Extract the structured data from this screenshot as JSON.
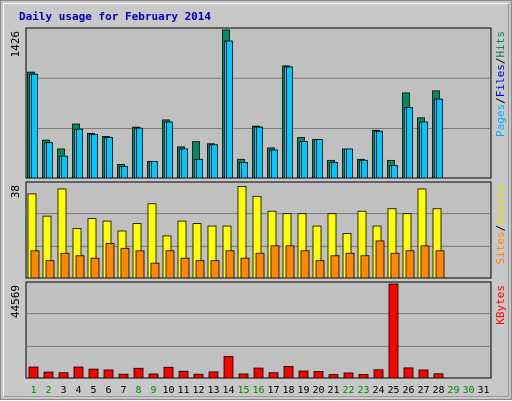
{
  "title": "Daily usage for February 2014",
  "colors": {
    "panel_bg": "#c0c0c0",
    "hits": "#008c60",
    "files": "#00ccff",
    "pages": "#00c8ff",
    "visits": "#ffff00",
    "sites": "#ff8800",
    "kbytes": "#ff0000",
    "weekday_label": "#000000",
    "weekend_label": "#008800",
    "title": "#0000bb"
  },
  "chart_data": [
    {
      "type": "bar",
      "panel": "hits-files-pages",
      "ymax_label": "1426",
      "ylim": [
        0,
        1426
      ],
      "legend": [
        "Hits",
        "Files",
        "Pages"
      ],
      "x": [
        1,
        2,
        3,
        4,
        5,
        6,
        7,
        8,
        9,
        10,
        11,
        12,
        13,
        14,
        15,
        16,
        17,
        18,
        19,
        20,
        21,
        22,
        23,
        24,
        25,
        26,
        27,
        28
      ],
      "series": [
        {
          "name": "Hits",
          "values": [
            1020,
            365,
            280,
            520,
            430,
            400,
            130,
            490,
            160,
            560,
            300,
            350,
            330,
            1426,
            180,
            500,
            290,
            1080,
            390,
            370,
            170,
            280,
            180,
            460,
            170,
            820,
            580,
            840
          ]
        },
        {
          "name": "Files",
          "values": [
            1000,
            340,
            210,
            470,
            420,
            390,
            110,
            480,
            160,
            540,
            280,
            180,
            320,
            1320,
            150,
            490,
            270,
            1070,
            350,
            370,
            150,
            280,
            170,
            450,
            120,
            680,
            540,
            760
          ]
        },
        {
          "name": "Pages",
          "values": [
            1000,
            340,
            210,
            470,
            420,
            390,
            110,
            480,
            160,
            540,
            280,
            180,
            320,
            1320,
            150,
            490,
            270,
            1070,
            350,
            370,
            150,
            280,
            170,
            450,
            120,
            680,
            540,
            760
          ]
        }
      ]
    },
    {
      "type": "bar",
      "panel": "visits-sites",
      "ymax_label": "38",
      "ylim": [
        0,
        38
      ],
      "legend": [
        "Visits",
        "Sites"
      ],
      "x": [
        1,
        2,
        3,
        4,
        5,
        6,
        7,
        8,
        9,
        10,
        11,
        12,
        13,
        14,
        15,
        16,
        17,
        18,
        19,
        20,
        21,
        22,
        23,
        24,
        25,
        26,
        27,
        28
      ],
      "series": [
        {
          "name": "Visits",
          "values": [
            34,
            25,
            36,
            20,
            24,
            23,
            19,
            22,
            30,
            17,
            23,
            22,
            21,
            21,
            37,
            33,
            27,
            26,
            26,
            21,
            26,
            18,
            27,
            21,
            28,
            26,
            36,
            28
          ]
        },
        {
          "name": "Sites",
          "values": [
            11,
            7,
            10,
            9,
            8,
            14,
            12,
            11,
            6,
            11,
            8,
            7,
            7,
            11,
            8,
            10,
            13,
            13,
            11,
            7,
            9,
            10,
            9,
            15,
            10,
            11,
            13,
            11
          ]
        }
      ]
    },
    {
      "type": "bar",
      "panel": "kbytes",
      "ymax_label": "44569",
      "ylim": [
        0,
        44569
      ],
      "legend": [
        "KBytes"
      ],
      "x": [
        1,
        2,
        3,
        4,
        5,
        6,
        7,
        8,
        9,
        10,
        11,
        12,
        13,
        14,
        15,
        16,
        17,
        18,
        19,
        20,
        21,
        22,
        23,
        24,
        25,
        26,
        27,
        28
      ],
      "series": [
        {
          "name": "KBytes",
          "values": [
            5200,
            2800,
            2500,
            5200,
            4200,
            3800,
            1800,
            4600,
            1900,
            5100,
            3200,
            1800,
            2900,
            10200,
            1900,
            4700,
            2500,
            5500,
            3300,
            3100,
            1600,
            2400,
            1700,
            3900,
            44569,
            4800,
            3800,
            2000
          ]
        }
      ]
    }
  ],
  "x_axis_labels": [
    {
      "text": "1",
      "weekend": true
    },
    {
      "text": "2",
      "weekend": true
    },
    {
      "text": "3",
      "weekend": false
    },
    {
      "text": "4",
      "weekend": false
    },
    {
      "text": "5",
      "weekend": false
    },
    {
      "text": "6",
      "weekend": false
    },
    {
      "text": "7",
      "weekend": false
    },
    {
      "text": "8",
      "weekend": true
    },
    {
      "text": "9",
      "weekend": true
    },
    {
      "text": "10",
      "weekend": false
    },
    {
      "text": "11",
      "weekend": false
    },
    {
      "text": "12",
      "weekend": false
    },
    {
      "text": "13",
      "weekend": false
    },
    {
      "text": "14",
      "weekend": false
    },
    {
      "text": "15",
      "weekend": true
    },
    {
      "text": "16",
      "weekend": true
    },
    {
      "text": "17",
      "weekend": false
    },
    {
      "text": "18",
      "weekend": false
    },
    {
      "text": "19",
      "weekend": false
    },
    {
      "text": "20",
      "weekend": false
    },
    {
      "text": "21",
      "weekend": false
    },
    {
      "text": "22",
      "weekend": true
    },
    {
      "text": "23",
      "weekend": true
    },
    {
      "text": "24",
      "weekend": false
    },
    {
      "text": "25",
      "weekend": false
    },
    {
      "text": "26",
      "weekend": false
    },
    {
      "text": "27",
      "weekend": false
    },
    {
      "text": "28",
      "weekend": false
    },
    {
      "text": "29",
      "weekend": true
    },
    {
      "text": "30",
      "weekend": true
    },
    {
      "text": "31",
      "weekend": false
    }
  ],
  "legend_separator": "/"
}
